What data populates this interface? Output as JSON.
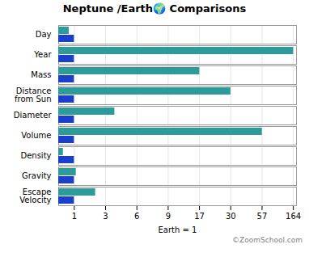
{
  "chart_data": {
    "type": "bar",
    "orientation": "horizontal",
    "title": "Neptune /Earth🌍 Comparisons",
    "x_label": "Earth = 1",
    "categories": [
      "Day",
      "Year",
      "Mass",
      "Distance\nfrom Sun",
      "Diameter",
      "Volume",
      "Density",
      "Gravity",
      "Escape\nVelocity"
    ],
    "series": [
      {
        "color": "#2e9b9b",
        "values": [
          0.67,
          164.8,
          17.1,
          30.07,
          3.88,
          57.7,
          0.297,
          1.12,
          2.36
        ]
      },
      {
        "color": "#1a3fcc",
        "values": [
          1,
          1,
          1,
          1,
          1,
          1,
          1,
          1,
          1
        ]
      }
    ],
    "xlim": [
      0,
      174.7
    ],
    "xticks": [
      1,
      3,
      6,
      9,
      17,
      30,
      57,
      164
    ],
    "grid": true,
    "annotations": [
      "©ZoomSchool.com"
    ]
  }
}
